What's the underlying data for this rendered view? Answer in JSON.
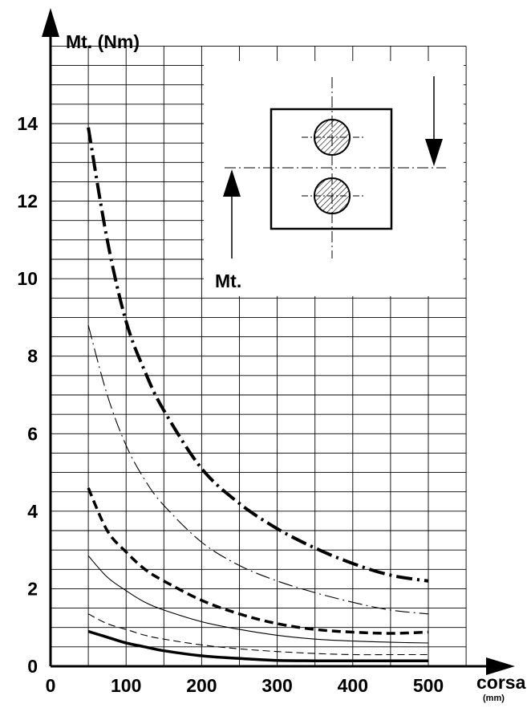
{
  "chart_data": {
    "type": "line",
    "ylabel": "Mt. (Nm)",
    "xlabel": "corsa",
    "xunit": "(mm)",
    "xlim": [
      0,
      550
    ],
    "ylim": [
      0,
      16
    ],
    "xticks": [
      0,
      100,
      200,
      300,
      400,
      500
    ],
    "yticks": [
      0,
      2,
      4,
      6,
      8,
      10,
      12,
      14
    ],
    "grid": true,
    "inset_label": "Mt.",
    "series": [
      {
        "style": "thick-dash-dot",
        "x": [
          50,
          75,
          100,
          125,
          150,
          200,
          250,
          300,
          350,
          400,
          450,
          500
        ],
        "y": [
          13.9,
          11.0,
          8.9,
          7.6,
          6.6,
          5.1,
          4.2,
          3.55,
          3.05,
          2.65,
          2.35,
          2.2
        ]
      },
      {
        "style": "thin-dash-dot",
        "x": [
          50,
          75,
          100,
          125,
          150,
          200,
          250,
          300,
          350,
          400,
          450,
          500
        ],
        "y": [
          8.8,
          7.0,
          5.7,
          4.8,
          4.15,
          3.2,
          2.6,
          2.2,
          1.9,
          1.65,
          1.45,
          1.35
        ]
      },
      {
        "style": "thick-dashed",
        "x": [
          50,
          75,
          100,
          125,
          150,
          200,
          250,
          300,
          350,
          400,
          450,
          500
        ],
        "y": [
          4.6,
          3.5,
          2.95,
          2.5,
          2.2,
          1.7,
          1.35,
          1.1,
          0.95,
          0.88,
          0.85,
          0.88
        ]
      },
      {
        "style": "thin-solid",
        "x": [
          50,
          75,
          100,
          125,
          150,
          200,
          250,
          300,
          350,
          400,
          450,
          500
        ],
        "y": [
          2.85,
          2.3,
          1.95,
          1.65,
          1.45,
          1.15,
          0.95,
          0.8,
          0.7,
          0.65,
          0.62,
          0.6
        ]
      },
      {
        "style": "thin-dashed",
        "x": [
          50,
          75,
          100,
          125,
          150,
          200,
          250,
          300,
          350,
          400,
          450,
          500
        ],
        "y": [
          1.35,
          1.1,
          0.95,
          0.8,
          0.7,
          0.55,
          0.45,
          0.38,
          0.33,
          0.3,
          0.3,
          0.3
        ]
      },
      {
        "style": "thick-solid",
        "x": [
          50,
          75,
          100,
          125,
          150,
          200,
          250,
          300,
          350,
          400,
          450,
          500
        ],
        "y": [
          0.9,
          0.75,
          0.6,
          0.5,
          0.4,
          0.27,
          0.2,
          0.15,
          0.14,
          0.14,
          0.14,
          0.14
        ]
      }
    ]
  }
}
